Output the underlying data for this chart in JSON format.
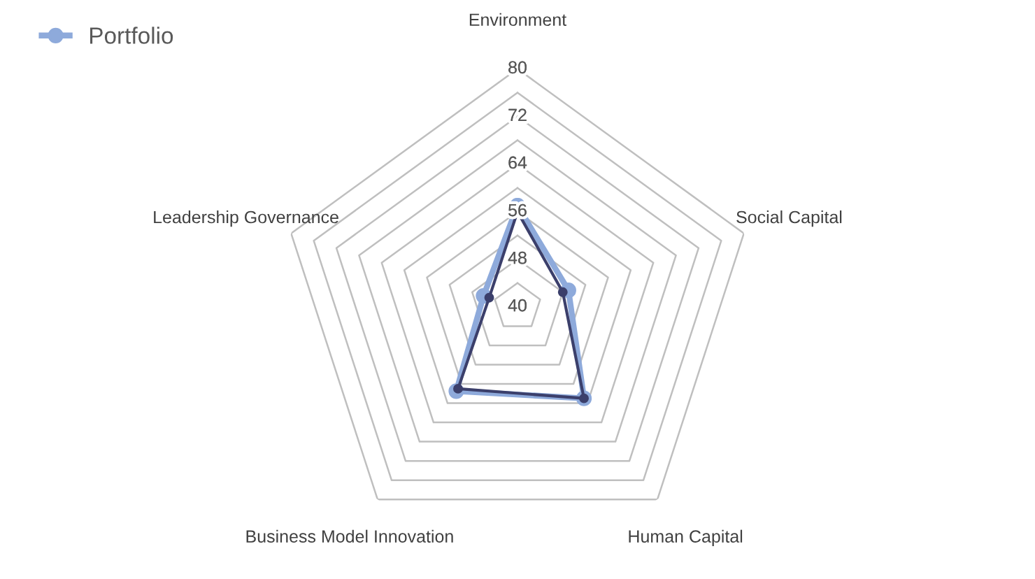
{
  "chart_data": {
    "type": "radar",
    "categories": [
      "Environment",
      "Social Capital",
      "Human Capital",
      "Business Model Innovation",
      "Leadership Governance"
    ],
    "series": [
      {
        "name": "Portfolio",
        "color": "#8eaadb",
        "values": [
          57,
          49,
          59,
          57.5,
          46
        ]
      },
      {
        "color": "#3b3f6b",
        "values": [
          56,
          48,
          59,
          57,
          45
        ]
      }
    ],
    "ylim": [
      40,
      80
    ],
    "yticks": [
      40,
      48,
      56,
      64,
      72,
      80
    ],
    "grid": true,
    "legend": "top left",
    "marker": "circle"
  }
}
